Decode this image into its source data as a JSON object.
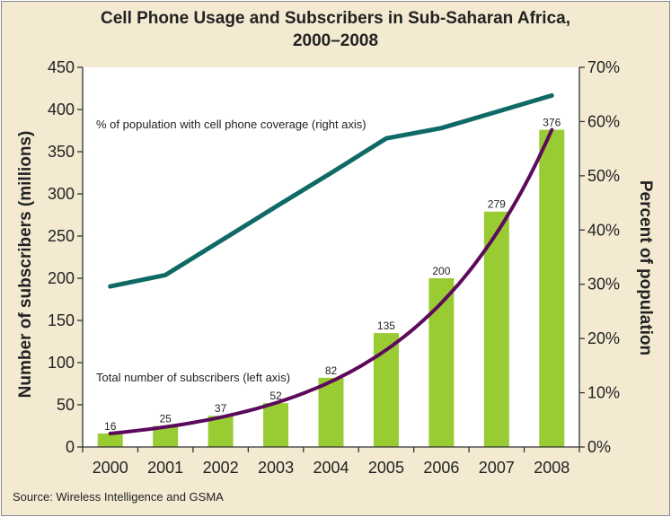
{
  "title_line_1": "Cell Phone Usage and Subscribers in Sub-Saharan Africa,",
  "title_line_2": "2000–2008",
  "source": "Source: Wireless Intelligence and GSMA",
  "chart_data": {
    "type": "bar",
    "title": "Cell Phone Usage and Subscribers in Sub-Saharan Africa, 2000–2008",
    "categories": [
      "2000",
      "2001",
      "2002",
      "2003",
      "2004",
      "2005",
      "2006",
      "2007",
      "2008"
    ],
    "ylabel": "Number of subscribers (millions)",
    "y2label": "Percent of population",
    "ylim": [
      0,
      450
    ],
    "y2lim": [
      0,
      70
    ],
    "yticks": [
      0,
      50,
      100,
      150,
      200,
      250,
      300,
      350,
      400,
      450
    ],
    "y2ticks": [
      "0%",
      "10%",
      "20%",
      "30%",
      "40%",
      "50%",
      "60%",
      "70%"
    ],
    "series": [
      {
        "name": "Total number of subscribers (left axis)",
        "type": "bar",
        "axis": "left",
        "values": [
          16,
          25,
          37,
          52,
          82,
          135,
          200,
          279,
          376
        ],
        "labels": [
          "16",
          "25",
          "37",
          "52",
          "82",
          "135",
          "200",
          "279",
          "376"
        ],
        "color": "#99cc33",
        "trend_color": "#5c0a5c"
      },
      {
        "name": "% of population with cell phone coverage (right axis)",
        "type": "line",
        "axis": "right",
        "values": [
          29.6,
          31.7,
          38,
          44.3,
          50.5,
          56.9,
          58.8,
          61.8,
          64.8
        ],
        "color": "#0f6a66"
      }
    ],
    "grid": false
  }
}
